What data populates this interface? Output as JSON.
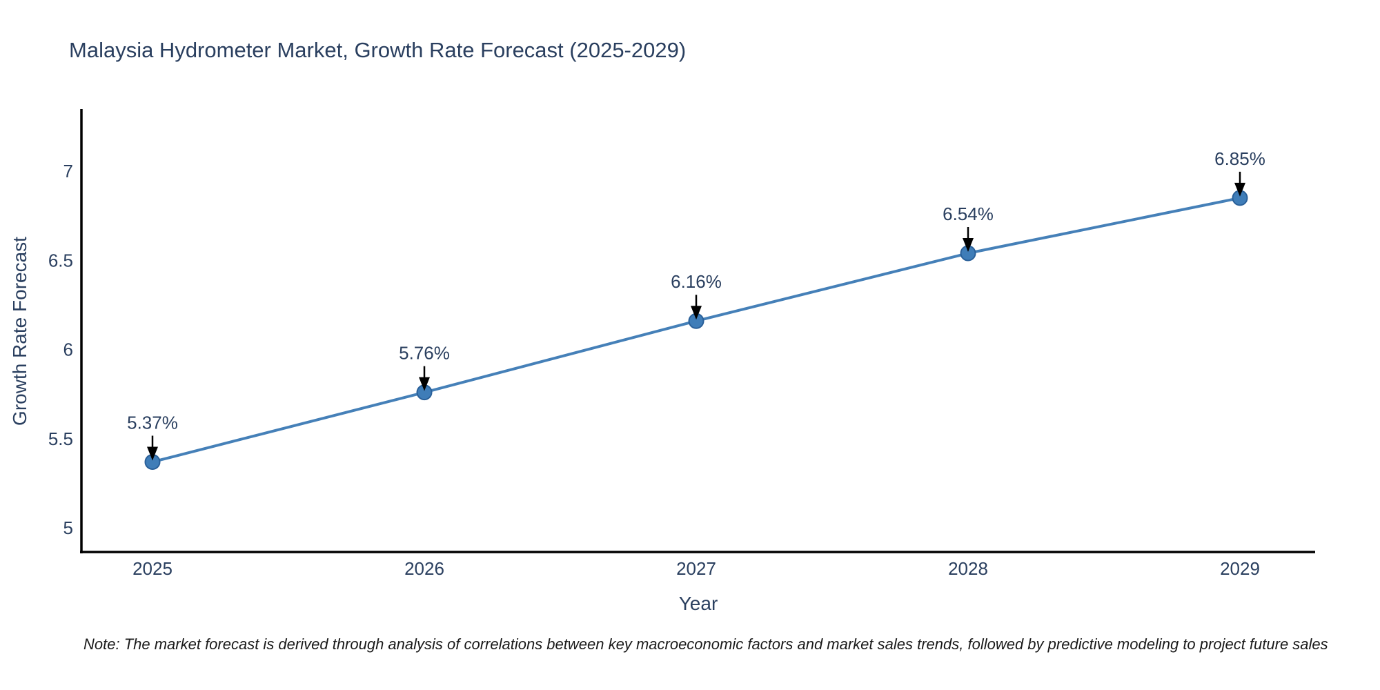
{
  "page": {
    "background": "#ffffff"
  },
  "chart_data": {
    "type": "line",
    "title": "Malaysia Hydrometer Market, Growth Rate Forecast (2025-2029)",
    "xlabel": "Year",
    "ylabel": "Growth Rate Forecast",
    "categories": [
      "2025",
      "2026",
      "2027",
      "2028",
      "2029"
    ],
    "series": [
      {
        "name": "Growth Rate Forecast",
        "values": [
          5.37,
          5.76,
          6.16,
          6.54,
          6.85
        ]
      }
    ],
    "point_labels": [
      "5.37%",
      "5.76%",
      "6.16%",
      "6.54%",
      "6.85%"
    ],
    "ytick_labels": [
      "5",
      "5.5",
      "6",
      "6.5",
      "7"
    ],
    "ytick_values": [
      5,
      5.5,
      6,
      6.5,
      7
    ],
    "ylim": [
      4.86,
      7.34
    ],
    "grid": false,
    "legend": "none",
    "annotation_arrows": true,
    "colors": {
      "line": "#4580b8",
      "marker_fill": "#3f7db8",
      "marker_edge": "#2a6099",
      "arrow": "#000000",
      "text": "#2a3f5f",
      "axis": "#000000",
      "note_text": "#1a1a1a"
    }
  },
  "note": "Note: The market forecast is derived through analysis of correlations between key macroeconomic factors and market sales trends, followed by predictive modeling to project future sales"
}
